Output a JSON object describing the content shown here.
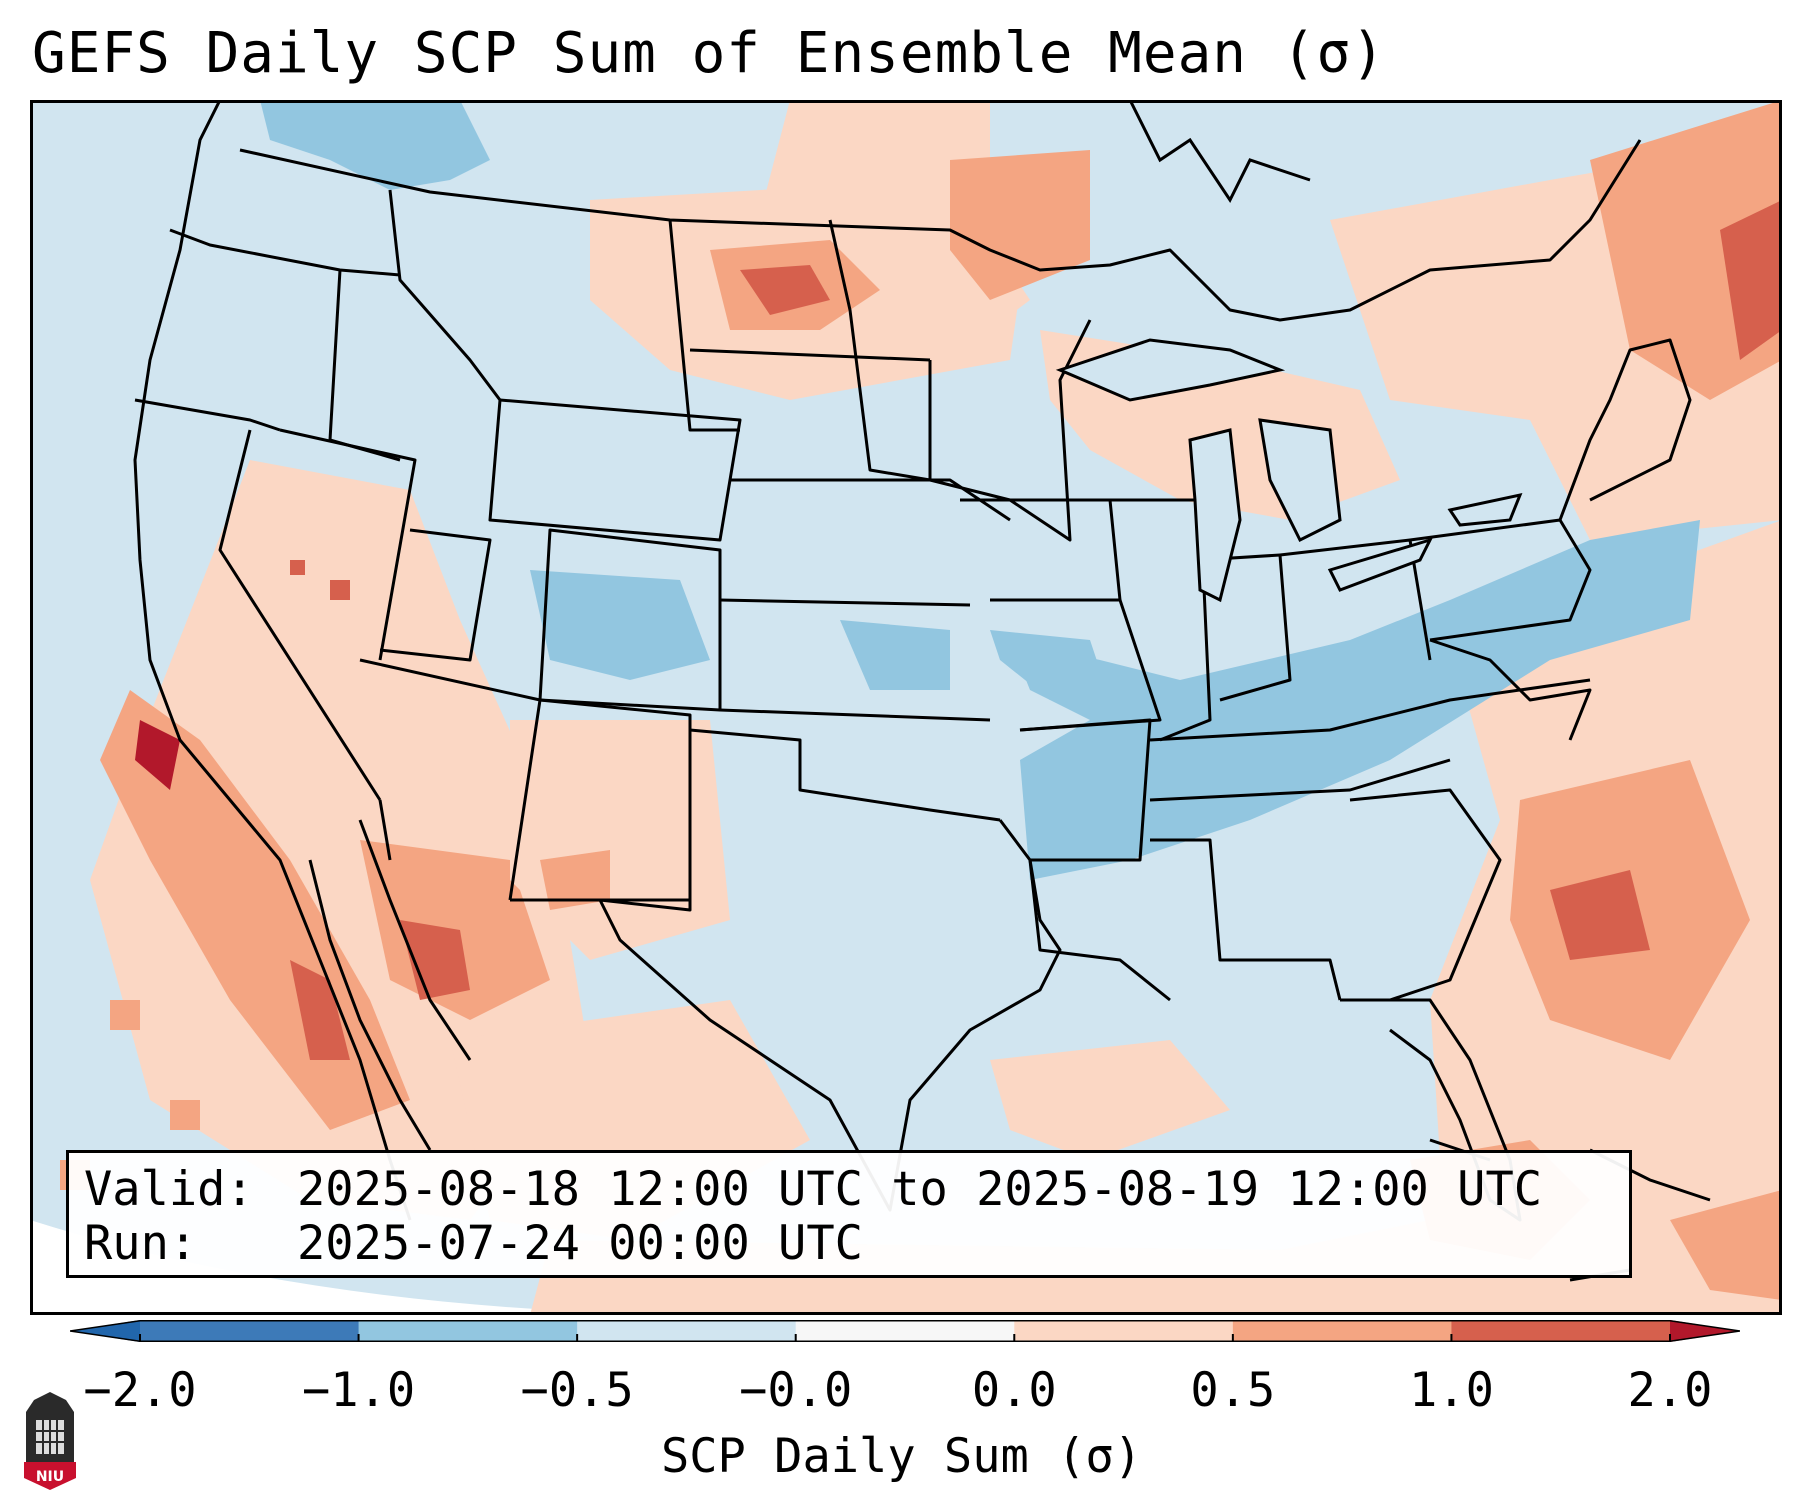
{
  "title": "GEFS Daily SCP Sum of Ensemble Mean (σ)",
  "info": {
    "valid_label": "Valid:",
    "valid_value": "2025-08-18 12:00 UTC to 2025-08-19 12:00 UTC",
    "run_label": "Run:",
    "run_value": "2025-07-24 00:00 UTC"
  },
  "colorbar": {
    "label": "SCP Daily Sum (σ)",
    "ticks": [
      "−2.0",
      "−1.0",
      "−0.5",
      "−0.0",
      "0.0",
      "0.5",
      "1.0",
      "2.0"
    ],
    "colors": [
      "#3d7ab8",
      "#92c6e0",
      "#d1e5f0",
      "#f7f7f7",
      "#fbd7c4",
      "#f4a582",
      "#d6604d",
      "#b2182b"
    ],
    "under_color": "#2166ac",
    "over_color": "#b2182b"
  },
  "map": {
    "region": "CONUS",
    "ocean_fill": "#d1e5f0",
    "outline_color": "#000000"
  },
  "logo": {
    "text": "NIU"
  }
}
